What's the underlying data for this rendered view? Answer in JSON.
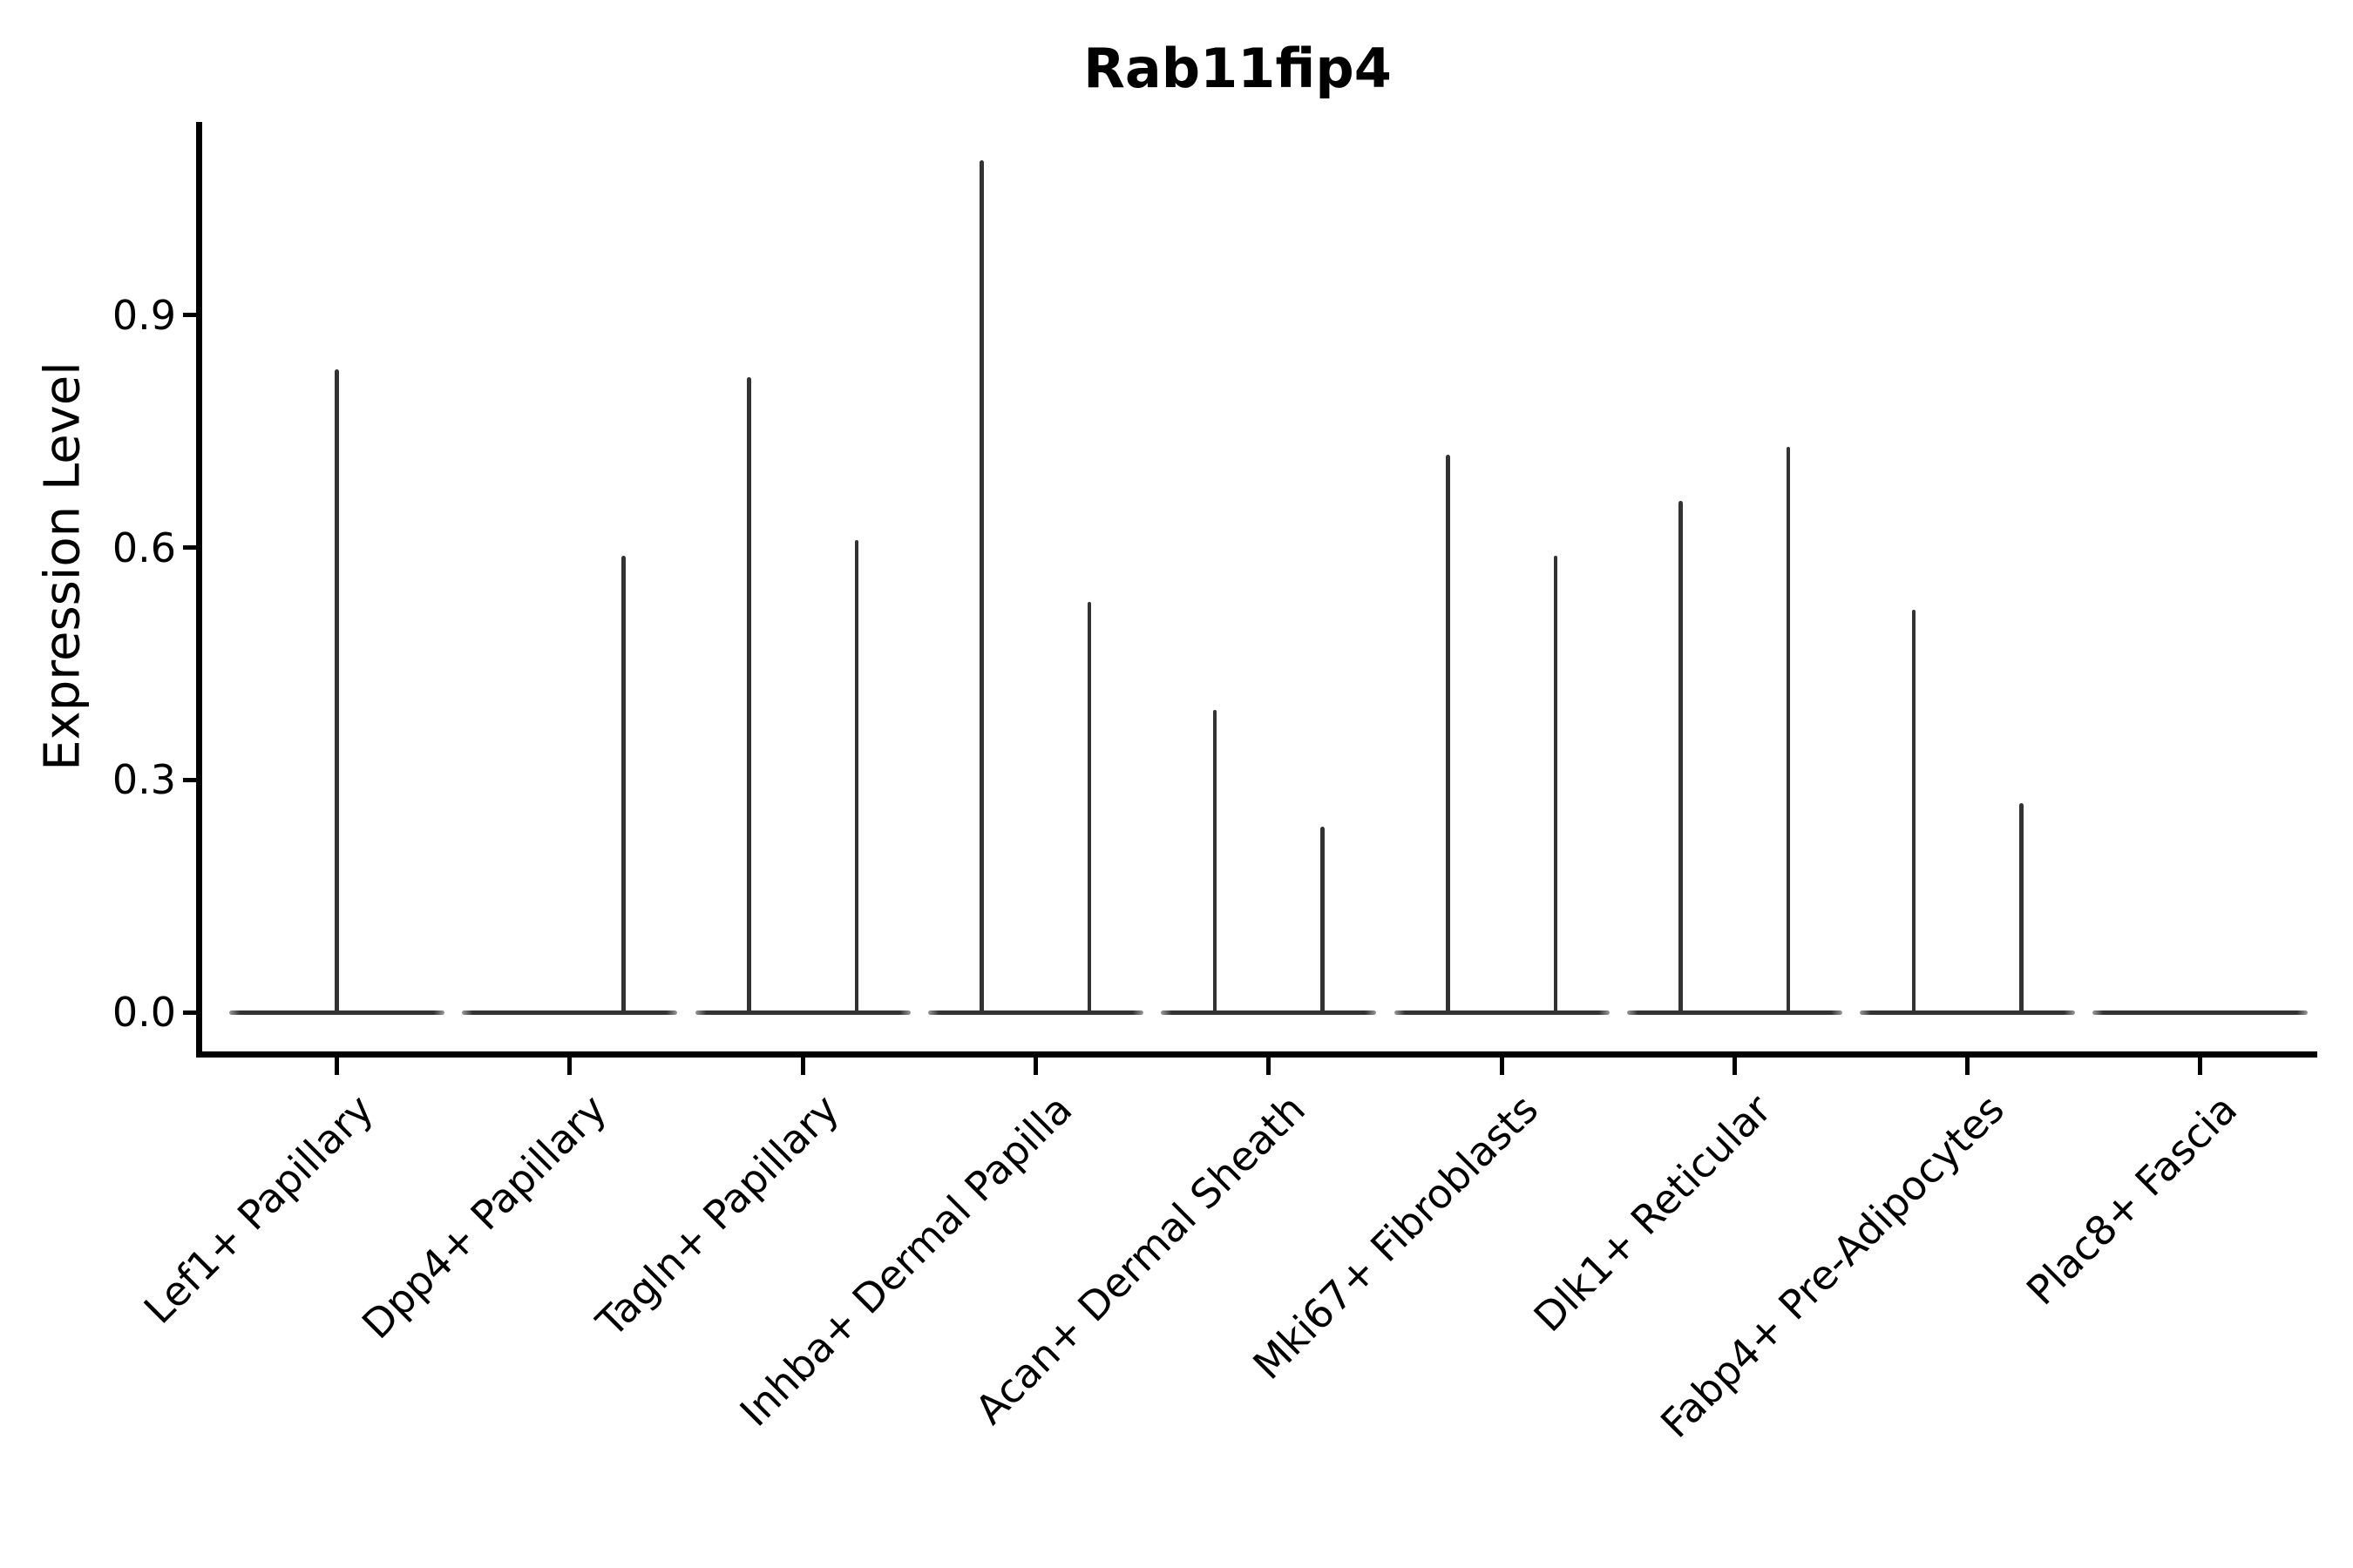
{
  "chart_data": {
    "type": "violin",
    "title": "Rab11fip4",
    "ylabel": "Expression Level",
    "xlabel": "",
    "grid": false,
    "legend": false,
    "background": "#ffffff",
    "ylim": [
      0,
      1.15
    ],
    "yticks": [
      {
        "label": "0.0",
        "value": 0.0
      },
      {
        "label": "0.3",
        "value": 0.3
      },
      {
        "label": "0.6",
        "value": 0.6
      },
      {
        "label": "0.9",
        "value": 0.9
      }
    ],
    "x_label_rotation_deg": 45,
    "violin_style": "collapsed flat violins at 0 with thin vertical spikes to max expression",
    "colors": {
      "violin": "#333333",
      "axis": "#000000",
      "text": "#000000"
    },
    "categories": [
      {
        "label": "Lef1+ Papillary",
        "spikes": [
          {
            "position": "center",
            "max": 0.83
          }
        ]
      },
      {
        "label": "Dpp4+ Papillary",
        "spikes": [
          {
            "position": "right",
            "max": 0.59
          }
        ]
      },
      {
        "label": "Tagln+ Papillary",
        "spikes": [
          {
            "position": "left",
            "max": 0.82
          },
          {
            "position": "right",
            "max": 0.61
          }
        ]
      },
      {
        "label": "Inhba+ Dermal Papilla",
        "spikes": [
          {
            "position": "left",
            "max": 1.1
          },
          {
            "position": "right",
            "max": 0.53
          }
        ]
      },
      {
        "label": "Acan+ Dermal Sheath",
        "spikes": [
          {
            "position": "left",
            "max": 0.39
          },
          {
            "position": "right",
            "max": 0.24
          }
        ]
      },
      {
        "label": "Mki67+ Fibroblasts",
        "spikes": [
          {
            "position": "left",
            "max": 0.72
          },
          {
            "position": "right",
            "max": 0.59
          }
        ]
      },
      {
        "label": "Dlk1+ Reticular",
        "spikes": [
          {
            "position": "left",
            "max": 0.66
          },
          {
            "position": "right",
            "max": 0.73
          }
        ]
      },
      {
        "label": "Fabp4+ Pre-Adipocytes",
        "spikes": [
          {
            "position": "left",
            "max": 0.52
          },
          {
            "position": "right",
            "max": 0.27
          }
        ]
      },
      {
        "label": "Plac8+ Fascia",
        "spikes": []
      }
    ]
  }
}
